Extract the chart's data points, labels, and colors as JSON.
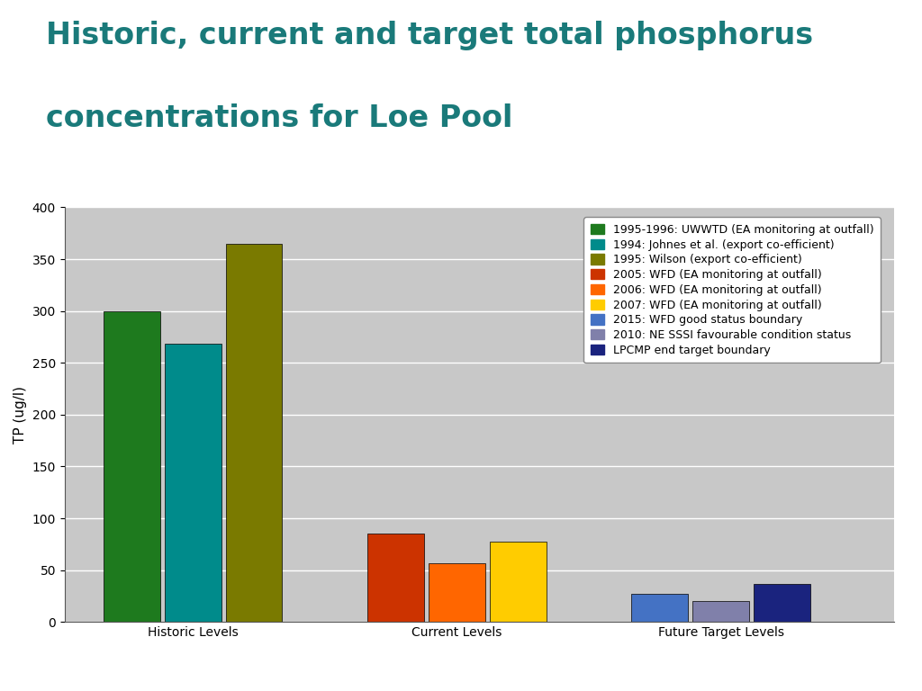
{
  "title_line1": "Historic, current and target total phosphorus",
  "title_line2": "concentrations for Loe Pool",
  "title_color": "#1a7a7a",
  "ylabel": "TP (ug/l)",
  "ylim": [
    0,
    400
  ],
  "yticks": [
    0,
    50,
    100,
    150,
    200,
    250,
    300,
    350,
    400
  ],
  "plot_bg_color": "#c8c8c8",
  "fig_bg_color": "#ffffff",
  "groups": [
    "Historic Levels",
    "Current Levels",
    "Future Target Levels"
  ],
  "bars": [
    {
      "group": "Historic Levels",
      "value": 300,
      "color": "#1e7a1e",
      "label": "1995-1996: UWWTD (EA monitoring at outfall)"
    },
    {
      "group": "Historic Levels",
      "value": 268,
      "color": "#008b8b",
      "label": "1994: Johnes et al. (export co-efficient)"
    },
    {
      "group": "Historic Levels",
      "value": 365,
      "color": "#7a7a00",
      "label": "1995: Wilson (export co-efficient)"
    },
    {
      "group": "Current Levels",
      "value": 85,
      "color": "#cc3300",
      "label": "2005: WFD (EA monitoring at outfall)"
    },
    {
      "group": "Current Levels",
      "value": 57,
      "color": "#ff6600",
      "label": "2006: WFD (EA monitoring at outfall)"
    },
    {
      "group": "Current Levels",
      "value": 77,
      "color": "#ffcc00",
      "label": "2007: WFD (EA monitoring at outfall)"
    },
    {
      "group": "Future Target Levels",
      "value": 27,
      "color": "#4472c4",
      "label": "2015: WFD good status boundary"
    },
    {
      "group": "Future Target Levels",
      "value": 20,
      "color": "#8080aa",
      "label": "2010: NE SSSI favourable condition status"
    },
    {
      "group": "Future Target Levels",
      "value": 37,
      "color": "#1a237e",
      "label": "LPCMP end target boundary"
    }
  ],
  "group_positions": [
    1.5,
    5.0,
    8.5
  ],
  "bar_width": 0.75,
  "legend_fontsize": 9,
  "ylabel_fontsize": 11,
  "tick_fontsize": 10,
  "title_fontsize": 24
}
